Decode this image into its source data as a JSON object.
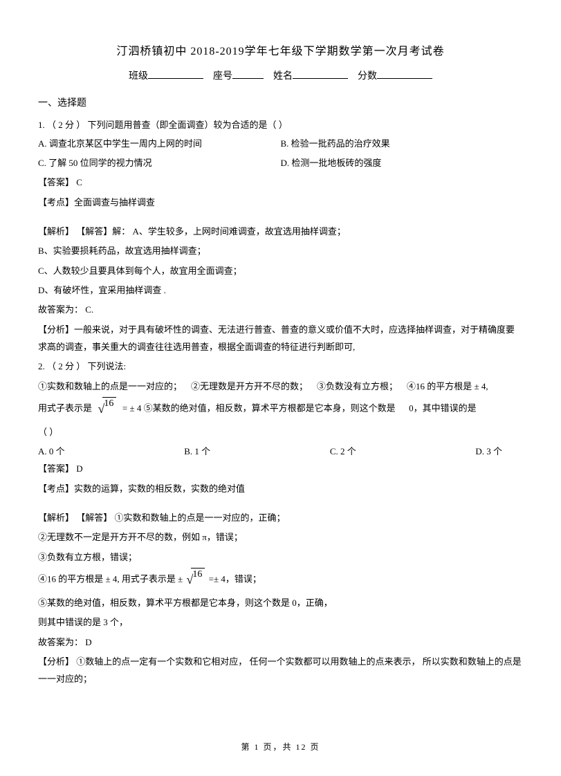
{
  "title": "汀泗桥镇初中  2018-2019学年七年级下学期数学第一次月考试卷",
  "header": {
    "class_label": "班级",
    "seat_label": "座号",
    "name_label": "姓名",
    "score_label": "分数"
  },
  "section1": "一、选择题",
  "q1": {
    "stem": "1.     （ 2 分 ）  下列问题用普查（即全面调查）较为合适的是（         ）",
    "optA": "A. 调查北京某区中学生一周内上网的时间",
    "optB": "B. 检验一批药品的治疗效果",
    "optC": "C. 了解  50 位同学的视力情况",
    "optD": "D. 检测一批地板砖的强度",
    "answer": "【答案】  C",
    "kaodian": "【考点】全面调查与抽样调查",
    "jiexi_label": "【解析】  【解答】解：",
    "jiexi_A": "A、学生较多，上网时间难调查，故宜选用抽样调查；",
    "jiexi_B": "B、实验要损耗药品，故宜选用抽样调查；",
    "jiexi_C": "C、人数较少且要具体到每个人，故宜用全面调查；",
    "jiexi_D": "D、有破坏性，宜采用抽样调查 .",
    "gudaan": "故答案为：   C.",
    "fenxi": "【分析】一般来说，对于具有破坏性的调查、无法进行普查、普查的意义或价值不大时，应选择抽样调查，对于精确度要求高的调查，事关重大的调查往往选用普查，根据全面调查的特征进行判断即可,"
  },
  "q2": {
    "stem": "2.     （ 2 分 ）  下列说法:",
    "s1": "①实数和数轴上的点是一一对应的；",
    "s2": "②无理数是开方开不尽的数；",
    "s3": "③负数没有立方根；",
    "s4a": "④16 的平方根是   ± 4,",
    "s4b": "用式子表示是",
    "s4c": "=   ± 4 ⑤某数的绝对值，相反数，算术平方根都是它本身，则这个数是",
    "s4d": "0，其中错误的是",
    "paren": "（     ）",
    "optA": "A. 0 个",
    "optB": "B. 1 个",
    "optC": "C. 2 个",
    "optD": "D. 3 个",
    "answer": "【答案】  D",
    "kaodian": "【考点】实数的运算，实数的相反数，实数的绝对值",
    "jiexi_label": "【解析】  【解答】",
    "jiexi1": "①实数和数轴上的点是一一对应的，正确；",
    "jiexi2": "②无理数不一定是开方开不尽的数，例如      π，错误；",
    "jiexi3": "③负数有立方根，错误；",
    "jiexi4a": "④16 的平方根是   ± 4,  用式子表示是    ±",
    "jiexi4b": "=± 4，错误；",
    "jiexi5": "⑤某数的绝对值，相反数，算术平方根都是它本身，则这个数是        0，正确，",
    "jiexi6": "则其中错误的是   3 个，",
    "gudaan": "故答案为：   D",
    "fenxi": "【分析】 ①数轴上的点一定有一个实数和它相对应，      任何一个实数都可以用数轴上的点来表示，     所以实数和数轴上的点是一一对应的；"
  },
  "sqrt_val": "16",
  "footer": "第  1 页，共  12 页"
}
